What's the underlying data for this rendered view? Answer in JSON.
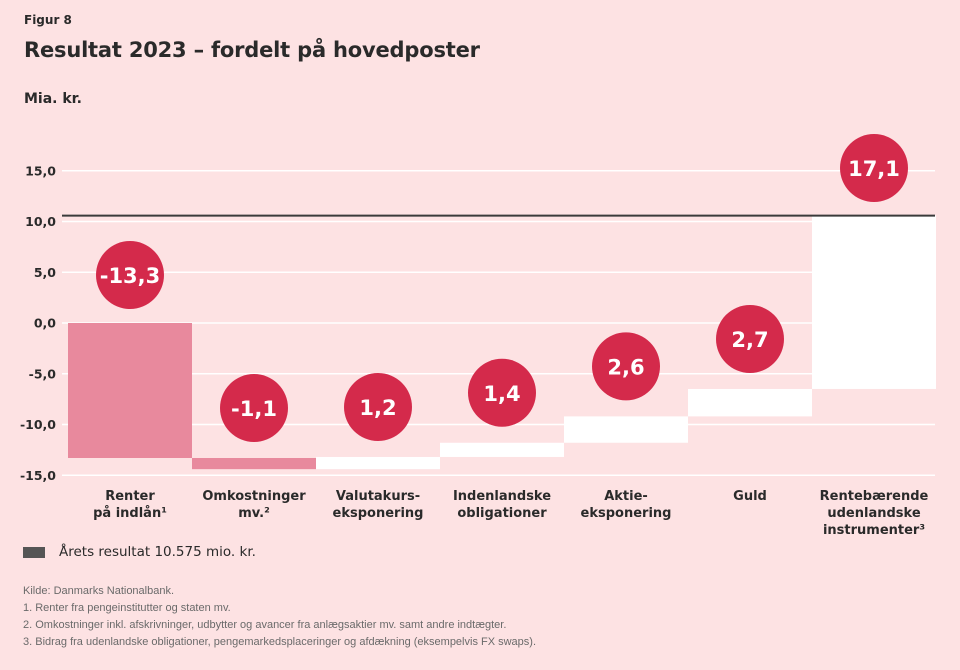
{
  "figure_label": "Figur 8",
  "title": "Resultat 2023 – fordelt på hovedposter",
  "unit_label": "Mia. kr.",
  "legend": {
    "label": "Årets resultat 10.575 mio. kr.",
    "color": "#555555"
  },
  "notes": [
    "Kilde: Danmarks Nationalbank.",
    "1.  Renter fra pengeinstitutter og staten mv.",
    "2.  Omkostninger inkl. afskrivninger, udbytter og avancer fra anlægsaktier mv. samt andre indtægter.",
    "3.  Bidrag fra udenlandske obligationer, pengemarkedsplaceringer og afdækning (eksempelvis FX swaps)."
  ],
  "colors": {
    "background": "#fde2e3",
    "negative_bar": "#e8899d",
    "positive_bar": "#ffffff",
    "bubble": "#d42a4b",
    "result_line": "#3a3a3a",
    "gridline": "#ffffff"
  },
  "chart_data": {
    "type": "bar",
    "subtype": "waterfall",
    "title": "Resultat 2023 – fordelt på hovedposter",
    "ylabel": "Mia. kr.",
    "xlabel": "",
    "ylim": [
      -15,
      15
    ],
    "yticks": [
      15,
      10,
      5,
      0,
      -5,
      -10,
      -15
    ],
    "ytick_labels": [
      "15,0",
      "10,0",
      "5,0",
      "0,0",
      "-5,0",
      "-10,0",
      "-15,0"
    ],
    "grid": true,
    "categories": [
      "Renter på indlån¹",
      "Omkostninger mv.²",
      "Valutakurs-eksponering",
      "Indenlandske obligationer",
      "Aktie-eksponering",
      "Guld",
      "Rentebærende udenlandske instrumenter³"
    ],
    "category_lines": [
      [
        "Renter",
        "på indlån¹"
      ],
      [
        "Omkostninger",
        "mv.²"
      ],
      [
        "Valutakurs-",
        "eksponering"
      ],
      [
        "Indenlandske",
        "obligationer"
      ],
      [
        "Aktie-",
        "eksponering"
      ],
      [
        "Guld"
      ],
      [
        "Rentebærende",
        "udenlandske",
        "instrumenter³"
      ]
    ],
    "values": [
      -13.3,
      -1.1,
      1.2,
      1.4,
      2.6,
      2.7,
      17.1
    ],
    "value_labels": [
      "-13,3",
      "-1,1",
      "1,2",
      "1,4",
      "2,6",
      "2,7",
      "17,1"
    ],
    "total": {
      "label": "Årets resultat 10.575 mio. kr.",
      "value": 10.575
    },
    "legend_position": "bottom-left"
  }
}
